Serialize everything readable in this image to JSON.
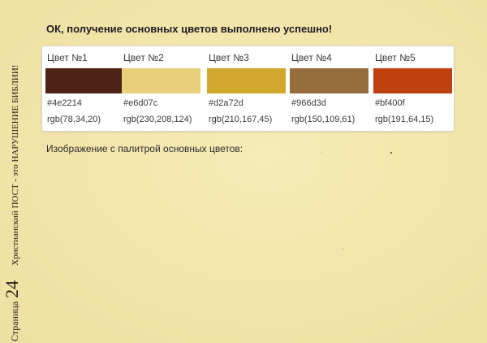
{
  "side": {
    "page_label": "Страница",
    "page_number": "24",
    "title": "Христианский ПОСТ - это НАРУШЕНИЕ БИБЛИИ!"
  },
  "status": {
    "message": "ОК, получение основных цветов выполнено успешно!"
  },
  "palette": {
    "swatches": [
      {
        "name": "Цвет №1",
        "hex": "#4e2214",
        "rgb": "rgb(78,34,20)",
        "color": "#4e2214"
      },
      {
        "name": "Цвет №2",
        "hex": "#e6d07c",
        "rgb": "rgb(230,208,124)",
        "color": "#e6d07c"
      },
      {
        "name": "Цвет №3",
        "hex": "#d2a72d",
        "rgb": "rgb(210,167,45)",
        "color": "#d2a72d"
      },
      {
        "name": "Цвет №4",
        "hex": "#966d3d",
        "rgb": "rgb(150,109,61)",
        "color": "#966d3d"
      },
      {
        "name": "Цвет №5",
        "hex": "#bf400f",
        "rgb": "rgb(191,64,15)",
        "color": "#bf400f"
      }
    ]
  },
  "caption": {
    "text": "Изображение с палитрой основных цветов:"
  }
}
